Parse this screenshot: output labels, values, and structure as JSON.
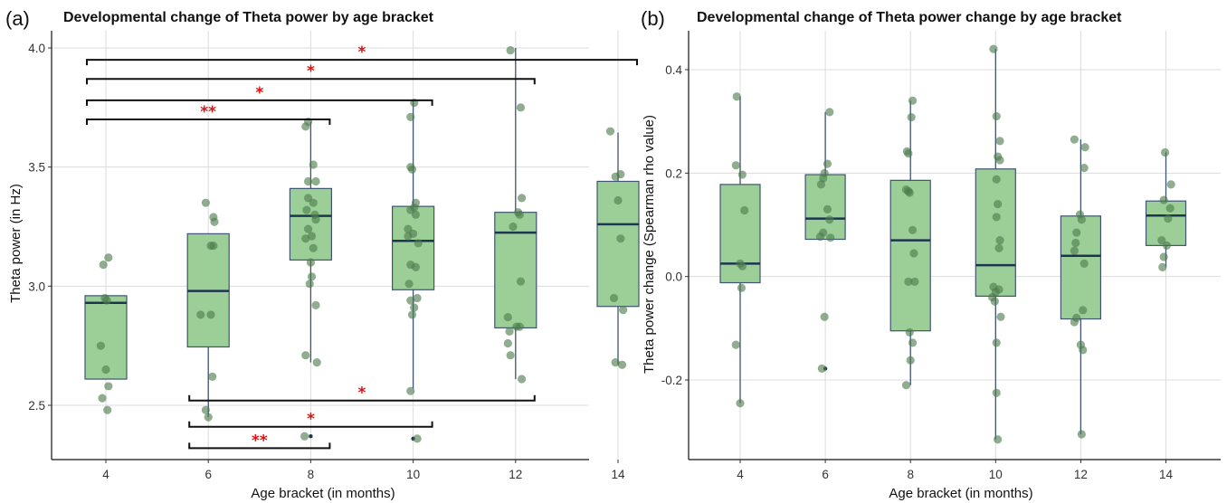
{
  "chart_data": [
    {
      "panel": "(a)",
      "type": "box",
      "title": "Developmental change of Theta power by age bracket",
      "xlabel": "Age bracket (in months)",
      "ylabel": "Theta power (in Hz)",
      "categories": [
        "4",
        "6",
        "8",
        "10",
        "12",
        "14"
      ],
      "ylim": [
        2.3,
        4.1
      ],
      "yticks": [
        2.5,
        3.0,
        3.5,
        4.0
      ],
      "ytick_labels": [
        "2.5",
        "3.0",
        "3.5",
        "4.0"
      ],
      "grid": true,
      "box_color": "#9ccf98",
      "point_color": "#4c7a4c",
      "boxes": [
        {
          "x": 4,
          "q1": 2.61,
          "median": 2.93,
          "q3": 2.96,
          "whisker_low": 2.61,
          "whisker_high": 2.96,
          "outliers": []
        },
        {
          "x": 6,
          "q1": 2.745,
          "median": 2.98,
          "q3": 3.22,
          "whisker_low": 2.45,
          "whisker_high": 3.22,
          "outliers": []
        },
        {
          "x": 8,
          "q1": 3.11,
          "median": 3.295,
          "q3": 3.41,
          "whisker_low": 2.68,
          "whisker_high": 3.69,
          "outliers": [
            2.37
          ]
        },
        {
          "x": 10,
          "q1": 2.985,
          "median": 3.19,
          "q3": 3.335,
          "whisker_low": 2.57,
          "whisker_high": 3.78,
          "outliers": [
            2.36
          ]
        },
        {
          "x": 12,
          "q1": 2.825,
          "median": 3.225,
          "q3": 3.31,
          "whisker_low": 2.61,
          "whisker_high": 4.0,
          "outliers": []
        },
        {
          "x": 14,
          "q1": 2.915,
          "median": 3.26,
          "q3": 3.44,
          "whisker_low": 2.67,
          "whisker_high": 3.645,
          "outliers": []
        }
      ],
      "points": [
        {
          "x": 3.95,
          "y": 3.09
        },
        {
          "x": 4.05,
          "y": 3.12
        },
        {
          "x": 3.98,
          "y": 2.95
        },
        {
          "x": 4.02,
          "y": 2.94
        },
        {
          "x": 3.9,
          "y": 2.75
        },
        {
          "x": 4.0,
          "y": 2.65
        },
        {
          "x": 3.93,
          "y": 2.53
        },
        {
          "x": 4.05,
          "y": 2.58
        },
        {
          "x": 4.03,
          "y": 2.48
        },
        {
          "x": 5.95,
          "y": 3.35
        },
        {
          "x": 6.1,
          "y": 3.29
        },
        {
          "x": 6.12,
          "y": 3.27
        },
        {
          "x": 6.05,
          "y": 3.17
        },
        {
          "x": 6.1,
          "y": 3.17
        },
        {
          "x": 5.85,
          "y": 2.88
        },
        {
          "x": 6.05,
          "y": 2.88
        },
        {
          "x": 6.08,
          "y": 2.62
        },
        {
          "x": 5.95,
          "y": 2.48
        },
        {
          "x": 6.0,
          "y": 2.45
        },
        {
          "x": 7.95,
          "y": 3.69
        },
        {
          "x": 7.9,
          "y": 3.67
        },
        {
          "x": 8.05,
          "y": 3.51
        },
        {
          "x": 7.95,
          "y": 3.44
        },
        {
          "x": 8.1,
          "y": 3.44
        },
        {
          "x": 7.95,
          "y": 3.37
        },
        {
          "x": 8.05,
          "y": 3.35
        },
        {
          "x": 7.92,
          "y": 3.32
        },
        {
          "x": 8.08,
          "y": 3.3
        },
        {
          "x": 8.1,
          "y": 3.28
        },
        {
          "x": 7.95,
          "y": 3.24
        },
        {
          "x": 8.02,
          "y": 3.21
        },
        {
          "x": 7.9,
          "y": 3.2
        },
        {
          "x": 8.05,
          "y": 3.16
        },
        {
          "x": 8.0,
          "y": 3.1
        },
        {
          "x": 8.02,
          "y": 3.04
        },
        {
          "x": 7.98,
          "y": 3.01
        },
        {
          "x": 8.1,
          "y": 2.92
        },
        {
          "x": 7.9,
          "y": 2.71
        },
        {
          "x": 8.12,
          "y": 2.68
        },
        {
          "x": 7.88,
          "y": 2.37
        },
        {
          "x": 10.02,
          "y": 3.77
        },
        {
          "x": 9.95,
          "y": 3.71
        },
        {
          "x": 9.95,
          "y": 3.5
        },
        {
          "x": 9.98,
          "y": 3.49
        },
        {
          "x": 10.05,
          "y": 3.35
        },
        {
          "x": 10.02,
          "y": 3.33
        },
        {
          "x": 9.95,
          "y": 3.32
        },
        {
          "x": 10.05,
          "y": 3.3
        },
        {
          "x": 9.9,
          "y": 3.24
        },
        {
          "x": 10.0,
          "y": 3.22
        },
        {
          "x": 9.9,
          "y": 3.21
        },
        {
          "x": 10.1,
          "y": 3.18
        },
        {
          "x": 9.95,
          "y": 3.09
        },
        {
          "x": 10.05,
          "y": 3.08
        },
        {
          "x": 9.92,
          "y": 3.01
        },
        {
          "x": 10.08,
          "y": 2.95
        },
        {
          "x": 9.95,
          "y": 2.94
        },
        {
          "x": 10.02,
          "y": 2.91
        },
        {
          "x": 9.98,
          "y": 2.88
        },
        {
          "x": 9.95,
          "y": 2.56
        },
        {
          "x": 10.08,
          "y": 2.36
        },
        {
          "x": 11.9,
          "y": 3.99
        },
        {
          "x": 12.1,
          "y": 3.75
        },
        {
          "x": 12.12,
          "y": 3.37
        },
        {
          "x": 12.05,
          "y": 3.31
        },
        {
          "x": 12.08,
          "y": 3.3
        },
        {
          "x": 11.95,
          "y": 3.25
        },
        {
          "x": 12.1,
          "y": 3.02
        },
        {
          "x": 11.85,
          "y": 2.87
        },
        {
          "x": 12.08,
          "y": 2.83
        },
        {
          "x": 12.02,
          "y": 2.83
        },
        {
          "x": 11.88,
          "y": 2.81
        },
        {
          "x": 11.85,
          "y": 2.76
        },
        {
          "x": 11.9,
          "y": 2.71
        },
        {
          "x": 12.12,
          "y": 2.61
        },
        {
          "x": 13.85,
          "y": 3.65
        },
        {
          "x": 14.05,
          "y": 3.47
        },
        {
          "x": 13.95,
          "y": 3.46
        },
        {
          "x": 14.0,
          "y": 3.36
        },
        {
          "x": 14.05,
          "y": 3.2
        },
        {
          "x": 13.92,
          "y": 2.95
        },
        {
          "x": 14.1,
          "y": 2.9
        },
        {
          "x": 13.95,
          "y": 2.68
        },
        {
          "x": 14.08,
          "y": 2.67
        }
      ],
      "significance_brackets": [
        {
          "from": 4,
          "to": 8,
          "y": 3.7,
          "label": "**",
          "position": "above"
        },
        {
          "from": 4,
          "to": 10,
          "y": 3.78,
          "label": "*",
          "position": "above"
        },
        {
          "from": 4,
          "to": 12,
          "y": 3.87,
          "label": "*",
          "position": "above"
        },
        {
          "from": 4,
          "to": 14,
          "y": 3.95,
          "label": "*",
          "position": "above"
        },
        {
          "from": 6,
          "to": 12,
          "y": 2.52,
          "label": "*",
          "position": "below"
        },
        {
          "from": 6,
          "to": 10,
          "y": 2.41,
          "label": "*",
          "position": "below"
        },
        {
          "from": 6,
          "to": 8,
          "y": 2.32,
          "label": "**",
          "position": "below"
        }
      ]
    },
    {
      "panel": "(b)",
      "type": "box",
      "title": "Developmental change of Theta power change by age bracket",
      "xlabel": "Age bracket (in months)",
      "ylabel": "Theta power change (Spearman rho value)",
      "categories": [
        "4",
        "6",
        "8",
        "10",
        "12",
        "14"
      ],
      "ylim": [
        -0.35,
        0.47
      ],
      "yticks": [
        -0.2,
        0.0,
        0.2,
        0.4
      ],
      "ytick_labels": [
        "-0.2",
        "0.0",
        "0.2",
        "0.4"
      ],
      "grid": true,
      "box_color": "#9ccf98",
      "point_color": "#4c7a4c",
      "boxes": [
        {
          "x": 4,
          "q1": -0.012,
          "median": 0.025,
          "q3": 0.178,
          "whisker_low": -0.245,
          "whisker_high": 0.348,
          "outliers": []
        },
        {
          "x": 6,
          "q1": 0.072,
          "median": 0.112,
          "q3": 0.197,
          "whisker_low": 0.072,
          "whisker_high": 0.318,
          "outliers": [
            -0.178
          ]
        },
        {
          "x": 8,
          "q1": -0.105,
          "median": 0.07,
          "q3": 0.186,
          "whisker_low": -0.21,
          "whisker_high": 0.34,
          "outliers": []
        },
        {
          "x": 10,
          "q1": -0.038,
          "median": 0.022,
          "q3": 0.208,
          "whisker_low": -0.315,
          "whisker_high": 0.44,
          "outliers": []
        },
        {
          "x": 12,
          "q1": -0.082,
          "median": 0.04,
          "q3": 0.117,
          "whisker_low": -0.305,
          "whisker_high": 0.265,
          "outliers": []
        },
        {
          "x": 14,
          "q1": 0.06,
          "median": 0.118,
          "q3": 0.146,
          "whisker_low": 0.018,
          "whisker_high": 0.24,
          "outliers": []
        }
      ],
      "points": [
        {
          "x": 3.92,
          "y": 0.348
        },
        {
          "x": 3.9,
          "y": 0.215
        },
        {
          "x": 4.05,
          "y": 0.197
        },
        {
          "x": 4.1,
          "y": 0.128
        },
        {
          "x": 4.0,
          "y": 0.025
        },
        {
          "x": 4.05,
          "y": 0.02
        },
        {
          "x": 4.03,
          "y": -0.022
        },
        {
          "x": 3.9,
          "y": -0.132
        },
        {
          "x": 4.0,
          "y": -0.245
        },
        {
          "x": 6.1,
          "y": 0.318
        },
        {
          "x": 6.05,
          "y": 0.218
        },
        {
          "x": 5.98,
          "y": 0.2
        },
        {
          "x": 5.95,
          "y": 0.19
        },
        {
          "x": 5.9,
          "y": 0.178
        },
        {
          "x": 6.05,
          "y": 0.13
        },
        {
          "x": 6.1,
          "y": 0.11
        },
        {
          "x": 5.95,
          "y": 0.085
        },
        {
          "x": 6.12,
          "y": 0.075
        },
        {
          "x": 5.88,
          "y": 0.077
        },
        {
          "x": 5.98,
          "y": -0.078
        },
        {
          "x": 5.92,
          "y": -0.178
        },
        {
          "x": 8.05,
          "y": 0.34
        },
        {
          "x": 8.02,
          "y": 0.308
        },
        {
          "x": 7.92,
          "y": 0.242
        },
        {
          "x": 7.95,
          "y": 0.238
        },
        {
          "x": 7.9,
          "y": 0.168
        },
        {
          "x": 7.95,
          "y": 0.165
        },
        {
          "x": 7.98,
          "y": 0.162
        },
        {
          "x": 8.05,
          "y": 0.09
        },
        {
          "x": 8.08,
          "y": 0.045
        },
        {
          "x": 7.95,
          "y": -0.01
        },
        {
          "x": 8.1,
          "y": -0.01
        },
        {
          "x": 7.98,
          "y": -0.108
        },
        {
          "x": 8.05,
          "y": -0.128
        },
        {
          "x": 8.0,
          "y": -0.162
        },
        {
          "x": 7.9,
          "y": -0.21
        },
        {
          "x": 9.95,
          "y": 0.44
        },
        {
          "x": 10.02,
          "y": 0.31
        },
        {
          "x": 10.1,
          "y": 0.262
        },
        {
          "x": 10.05,
          "y": 0.232
        },
        {
          "x": 10.1,
          "y": 0.225
        },
        {
          "x": 10.02,
          "y": 0.188
        },
        {
          "x": 10.05,
          "y": 0.14
        },
        {
          "x": 10.02,
          "y": 0.115
        },
        {
          "x": 10.1,
          "y": 0.07
        },
        {
          "x": 10.08,
          "y": 0.055
        },
        {
          "x": 9.95,
          "y": -0.02
        },
        {
          "x": 10.0,
          "y": -0.03
        },
        {
          "x": 9.92,
          "y": -0.04
        },
        {
          "x": 10.08,
          "y": -0.025
        },
        {
          "x": 9.98,
          "y": -0.048
        },
        {
          "x": 10.12,
          "y": -0.078
        },
        {
          "x": 10.02,
          "y": -0.128
        },
        {
          "x": 10.02,
          "y": -0.225
        },
        {
          "x": 10.05,
          "y": -0.315
        },
        {
          "x": 11.85,
          "y": 0.265
        },
        {
          "x": 12.1,
          "y": 0.25
        },
        {
          "x": 12.08,
          "y": 0.21
        },
        {
          "x": 11.98,
          "y": 0.12
        },
        {
          "x": 12.02,
          "y": 0.11
        },
        {
          "x": 11.9,
          "y": 0.085
        },
        {
          "x": 11.88,
          "y": 0.065
        },
        {
          "x": 11.85,
          "y": 0.05
        },
        {
          "x": 12.08,
          "y": 0.025
        },
        {
          "x": 12.05,
          "y": -0.065
        },
        {
          "x": 11.9,
          "y": -0.08
        },
        {
          "x": 11.85,
          "y": -0.088
        },
        {
          "x": 12.0,
          "y": -0.132
        },
        {
          "x": 12.05,
          "y": -0.142
        },
        {
          "x": 12.02,
          "y": -0.305
        },
        {
          "x": 13.98,
          "y": 0.24
        },
        {
          "x": 14.12,
          "y": 0.178
        },
        {
          "x": 13.95,
          "y": 0.148
        },
        {
          "x": 14.1,
          "y": 0.132
        },
        {
          "x": 14.05,
          "y": 0.112
        },
        {
          "x": 13.9,
          "y": 0.07
        },
        {
          "x": 14.02,
          "y": 0.06
        },
        {
          "x": 13.95,
          "y": 0.038
        },
        {
          "x": 13.92,
          "y": 0.018
        }
      ],
      "significance_brackets": []
    }
  ]
}
